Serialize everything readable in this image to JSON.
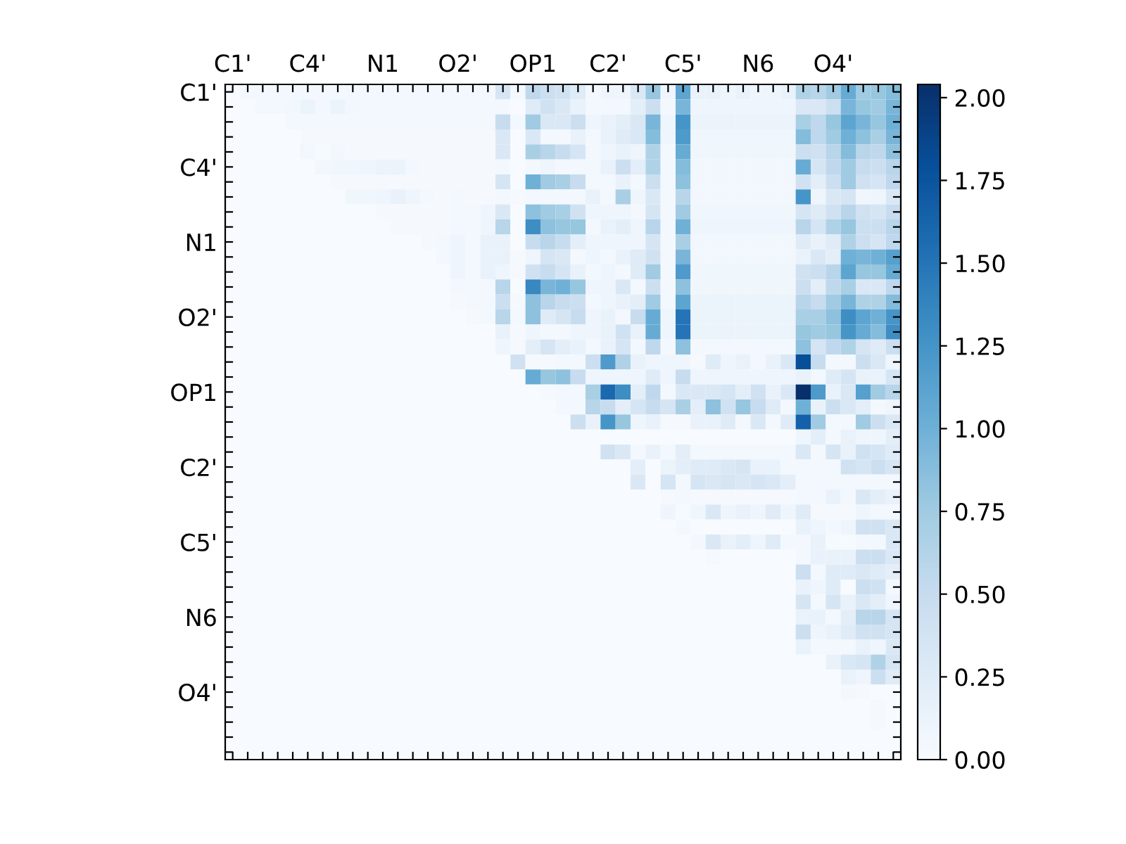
{
  "chart_data": {
    "type": "heatmap",
    "categories": [
      "C1'",
      null,
      null,
      null,
      null,
      "C4'",
      null,
      null,
      null,
      null,
      "N1",
      null,
      null,
      null,
      null,
      "O2'",
      null,
      null,
      null,
      null,
      "OP1",
      null,
      null,
      null,
      null,
      "C2'",
      null,
      null,
      null,
      null,
      "C5'",
      null,
      null,
      null,
      null,
      "N6",
      null,
      null,
      null,
      null,
      "O4'",
      null,
      null,
      null,
      null
    ],
    "y_categories": [
      "C1'",
      null,
      null,
      null,
      null,
      "C4'",
      null,
      null,
      null,
      null,
      "N1",
      null,
      null,
      null,
      null,
      "O2'",
      null,
      null,
      null,
      null,
      "OP1",
      null,
      null,
      null,
      null,
      "C2'",
      null,
      null,
      null,
      null,
      "C5'",
      null,
      null,
      null,
      null,
      "N6",
      null,
      null,
      null,
      null,
      "O4'",
      null,
      null,
      null,
      null
    ],
    "clim": [
      0,
      2.04
    ],
    "cticks": [
      {
        "value": 0,
        "label": "0.00"
      },
      {
        "value": 0.25,
        "label": "0.25"
      },
      {
        "value": 0.5,
        "label": "0.50"
      },
      {
        "value": 0.75,
        "label": "0.75"
      },
      {
        "value": 1.0,
        "label": "1.00"
      },
      {
        "value": 1.25,
        "label": "1.25"
      },
      {
        "value": 1.5,
        "label": "1.50"
      },
      {
        "value": 1.75,
        "label": "1.75"
      },
      {
        "value": 2.0,
        "label": "2.00"
      }
    ],
    "cells": [
      [
        0,
        0.05,
        0.05,
        0.05,
        0.05,
        0.05,
        0.05,
        0.05,
        0.05,
        0.05,
        0.05,
        0.05,
        0.05,
        0.05,
        0.05,
        0.05,
        0.05,
        0.05,
        0.35,
        0.05,
        0.55,
        0.45,
        0.4,
        0.25,
        0.05,
        0.1,
        0.1,
        0.3,
        0.8,
        0.1,
        1.1,
        0.15,
        0.15,
        0.1,
        0.15,
        0.1,
        0.1,
        0.15,
        0.65,
        0.6,
        0.75,
        1.05,
        0.75,
        0.8,
        0.9
      ],
      [
        0,
        0,
        0.05,
        0.05,
        0.07,
        0.12,
        0.05,
        0.12,
        0.07,
        0.05,
        0.05,
        0.05,
        0.05,
        0.05,
        0.05,
        0.05,
        0.05,
        0.05,
        0.05,
        0,
        0.25,
        0.4,
        0.3,
        0.15,
        0.05,
        0.05,
        0.05,
        0.2,
        0.45,
        0.05,
        0.95,
        0.1,
        0.1,
        0.1,
        0.1,
        0.1,
        0.1,
        0.1,
        0.3,
        0.3,
        0.45,
        0.95,
        0.8,
        0.75,
        0.95
      ],
      [
        0,
        0,
        0,
        0,
        0.05,
        0.05,
        0.05,
        0.05,
        0.05,
        0.05,
        0.05,
        0.05,
        0.05,
        0.05,
        0.05,
        0.05,
        0.05,
        0.05,
        0.5,
        0.05,
        0.75,
        0.3,
        0.3,
        0.45,
        0.1,
        0.15,
        0.2,
        0.3,
        0.95,
        0.1,
        1.25,
        0.12,
        0.12,
        0.12,
        0.12,
        0.12,
        0.12,
        0.12,
        0.7,
        0.55,
        0.8,
        1.1,
        0.95,
        0.8,
        1.0
      ],
      [
        0,
        0,
        0,
        0,
        0,
        0.03,
        0.03,
        0.03,
        0.03,
        0.03,
        0.03,
        0.03,
        0.03,
        0.03,
        0.03,
        0.03,
        0.03,
        0.03,
        0.3,
        0,
        0.3,
        0.05,
        0.05,
        0.15,
        0.05,
        0.15,
        0.25,
        0.3,
        0.9,
        0.1,
        1.2,
        0.08,
        0.08,
        0.08,
        0.08,
        0.08,
        0.08,
        0.08,
        0.9,
        0.55,
        0.75,
        1.0,
        0.85,
        0.7,
        0.95
      ],
      [
        0,
        0,
        0,
        0,
        0,
        0.07,
        0.02,
        0.07,
        0.03,
        0.03,
        0.03,
        0.03,
        0.03,
        0.03,
        0.03,
        0.03,
        0.03,
        0.03,
        0.3,
        0,
        0.7,
        0.6,
        0.5,
        0.35,
        0.05,
        0.1,
        0.15,
        0.1,
        0.65,
        0.05,
        1.05,
        0.08,
        0.08,
        0.08,
        0.08,
        0.08,
        0.08,
        0.08,
        0.45,
        0.4,
        0.6,
        0.9,
        0.6,
        0.55,
        0.85
      ],
      [
        0,
        0,
        0,
        0,
        0,
        0,
        0.06,
        0.08,
        0.08,
        0.1,
        0.12,
        0.12,
        0.05,
        0.03,
        0.03,
        0.03,
        0.03,
        0.03,
        0.05,
        0,
        0.05,
        0.1,
        0.05,
        0.05,
        0.05,
        0.15,
        0.45,
        0.2,
        0.65,
        0.05,
        0.9,
        0.07,
        0.07,
        0.07,
        0.07,
        0.07,
        0.07,
        0.07,
        1.05,
        0.35,
        0.55,
        0.75,
        0.5,
        0.45,
        0.6
      ],
      [
        0,
        0,
        0,
        0,
        0,
        0,
        0,
        0.03,
        0.03,
        0.03,
        0.03,
        0.03,
        0.03,
        0.03,
        0.03,
        0.03,
        0.03,
        0.03,
        0.35,
        0,
        1.0,
        0.75,
        0.7,
        0.5,
        0.05,
        0.05,
        0.15,
        0.05,
        0.45,
        0.05,
        0.85,
        0.06,
        0.06,
        0.06,
        0.06,
        0.06,
        0.06,
        0.06,
        0.4,
        0.2,
        0.45,
        0.75,
        0.4,
        0.35,
        0.55
      ],
      [
        0,
        0,
        0,
        0,
        0,
        0,
        0,
        0,
        0.08,
        0.08,
        0.1,
        0.15,
        0.1,
        0.05,
        0.03,
        0.05,
        0.03,
        0.03,
        0.05,
        0.03,
        0.05,
        0.05,
        0.05,
        0.05,
        0.15,
        0.05,
        0.7,
        0.1,
        0.3,
        0.05,
        0.6,
        0.07,
        0.07,
        0.07,
        0.07,
        0.07,
        0.07,
        0.07,
        1.25,
        0.1,
        0.3,
        0.35,
        0.08,
        0.1,
        0.3
      ],
      [
        0,
        0,
        0,
        0,
        0,
        0,
        0,
        0,
        0,
        0,
        0.03,
        0.03,
        0.03,
        0.03,
        0.03,
        0.05,
        0.05,
        0.1,
        0.3,
        0,
        0.85,
        0.75,
        0.7,
        0.4,
        0.1,
        0.1,
        0.1,
        0.05,
        0.35,
        0.05,
        0.75,
        0.08,
        0.08,
        0.08,
        0.08,
        0.08,
        0.08,
        0.08,
        0.35,
        0.25,
        0.4,
        0.6,
        0.4,
        0.35,
        0.5
      ],
      [
        0,
        0,
        0,
        0,
        0,
        0,
        0,
        0,
        0,
        0,
        0,
        0.03,
        0.03,
        0.03,
        0.03,
        0.05,
        0.05,
        0.1,
        0.6,
        0,
        1.3,
        0.85,
        0.8,
        0.8,
        0.05,
        0.15,
        0.2,
        0.1,
        0.6,
        0.05,
        1.0,
        0.1,
        0.1,
        0.1,
        0.1,
        0.1,
        0.1,
        0.1,
        0.6,
        0.35,
        0.65,
        0.8,
        0.45,
        0.45,
        0.6
      ],
      [
        0,
        0,
        0,
        0,
        0,
        0,
        0,
        0,
        0,
        0,
        0,
        0,
        0,
        0.03,
        0.05,
        0.1,
        0.05,
        0.15,
        0.15,
        0,
        0.5,
        0.6,
        0.5,
        0.2,
        0.1,
        0.1,
        0.1,
        0.1,
        0.35,
        0.05,
        0.7,
        0.07,
        0.07,
        0.07,
        0.07,
        0.07,
        0.07,
        0.07,
        0.25,
        0.15,
        0.25,
        0.65,
        0.45,
        0.35,
        0.55
      ],
      [
        0,
        0,
        0,
        0,
        0,
        0,
        0,
        0,
        0,
        0,
        0,
        0,
        0,
        0,
        0.05,
        0.1,
        0.05,
        0.15,
        0.15,
        0.03,
        0.1,
        0.35,
        0.3,
        0.05,
        0.1,
        0.05,
        0.15,
        0.25,
        0.4,
        0.05,
        0.95,
        0.07,
        0.07,
        0.07,
        0.07,
        0.07,
        0.07,
        0.07,
        0.15,
        0.3,
        0.2,
        1.0,
        0.95,
        1.0,
        1.15
      ],
      [
        0,
        0,
        0,
        0,
        0,
        0,
        0,
        0,
        0,
        0,
        0,
        0,
        0,
        0,
        0,
        0.1,
        0.05,
        0.15,
        0.1,
        0.03,
        0.4,
        0.5,
        0.35,
        0.15,
        0.05,
        0.1,
        0.05,
        0.25,
        0.75,
        0.05,
        1.2,
        0.08,
        0.08,
        0.08,
        0.08,
        0.08,
        0.08,
        0.08,
        0.4,
        0.45,
        0.6,
        1.1,
        0.8,
        0.8,
        1.05
      ],
      [
        0,
        0,
        0,
        0,
        0,
        0,
        0,
        0,
        0,
        0,
        0,
        0,
        0,
        0,
        0,
        0.05,
        0.05,
        0.05,
        0.6,
        0,
        1.35,
        0.95,
        1.0,
        0.8,
        0.1,
        0.1,
        0.3,
        0.05,
        0.45,
        0.05,
        0.85,
        0.08,
        0.08,
        0.08,
        0.08,
        0.08,
        0.08,
        0.08,
        0.45,
        0.2,
        0.55,
        0.7,
        0.3,
        0.3,
        0.55
      ],
      [
        0,
        0,
        0,
        0,
        0,
        0,
        0,
        0,
        0,
        0,
        0,
        0,
        0,
        0,
        0,
        0.03,
        0.05,
        0.05,
        0.45,
        0.03,
        0.85,
        0.6,
        0.5,
        0.45,
        0.05,
        0.1,
        0.15,
        0.2,
        0.75,
        0.05,
        1.1,
        0.12,
        0.12,
        0.12,
        0.12,
        0.12,
        0.12,
        0.12,
        0.6,
        0.5,
        0.75,
        0.95,
        0.65,
        0.65,
        0.9
      ],
      [
        0,
        0,
        0,
        0,
        0,
        0,
        0,
        0,
        0,
        0,
        0,
        0,
        0,
        0,
        0,
        0,
        0.03,
        0.05,
        0.6,
        0.05,
        0.85,
        0.25,
        0.35,
        0.5,
        0.1,
        0.15,
        0.05,
        0.5,
        1.05,
        0.1,
        1.5,
        0.12,
        0.12,
        0.12,
        0.12,
        0.12,
        0.12,
        0.12,
        0.7,
        0.7,
        0.85,
        1.3,
        1.1,
        1.0,
        1.25
      ],
      [
        0,
        0,
        0,
        0,
        0,
        0,
        0,
        0,
        0,
        0,
        0,
        0,
        0,
        0,
        0,
        0,
        0,
        0,
        0.15,
        0.03,
        0.1,
        0.05,
        0.05,
        0.1,
        0.1,
        0.15,
        0.4,
        0.15,
        1.05,
        0.1,
        1.5,
        0.12,
        0.12,
        0.12,
        0.12,
        0.12,
        0.12,
        0.12,
        0.8,
        0.75,
        0.8,
        1.25,
        1.05,
        0.9,
        1.3
      ],
      [
        0,
        0,
        0,
        0,
        0,
        0,
        0,
        0,
        0,
        0,
        0,
        0,
        0,
        0,
        0,
        0,
        0,
        0,
        0.1,
        0.03,
        0.2,
        0.35,
        0.2,
        0.15,
        0.05,
        0.15,
        0.35,
        0.05,
        0.55,
        0.05,
        0.85,
        0.05,
        0.05,
        0.05,
        0.05,
        0.05,
        0.05,
        0.05,
        0.85,
        0.35,
        0.55,
        0.65,
        0.35,
        0.25,
        0.45
      ],
      [
        0,
        0,
        0,
        0,
        0,
        0,
        0,
        0,
        0,
        0,
        0,
        0,
        0,
        0,
        0,
        0,
        0,
        0,
        0,
        0.4,
        0.03,
        0.03,
        0.05,
        0.05,
        0.45,
        1.2,
        0.65,
        0.15,
        0.1,
        0.1,
        0.1,
        0.03,
        0.25,
        0.1,
        0.15,
        0.05,
        0.15,
        0.3,
        1.8,
        0.5,
        0.05,
        0.05,
        0.45,
        0.3,
        0.1
      ],
      [
        0,
        0,
        0,
        0,
        0,
        0,
        0,
        0,
        0,
        0,
        0,
        0,
        0,
        0,
        0,
        0,
        0,
        0,
        0,
        0,
        1.05,
        0.8,
        0.85,
        0.5,
        0.1,
        0.1,
        0.1,
        0.1,
        0.25,
        0.1,
        0.5,
        0.1,
        0.1,
        0.1,
        0.1,
        0.1,
        0.1,
        0.1,
        0.15,
        0.05,
        0.25,
        0.35,
        0.15,
        0.15,
        0.35
      ],
      [
        0,
        0,
        0,
        0,
        0,
        0,
        0,
        0,
        0,
        0,
        0,
        0,
        0,
        0,
        0,
        0,
        0,
        0,
        0,
        0,
        0,
        0.03,
        0.05,
        0.05,
        0.7,
        1.6,
        1.3,
        0.2,
        0.55,
        0.05,
        0.3,
        0.3,
        0.3,
        0.35,
        0.2,
        0.4,
        0.15,
        0.3,
        2.04,
        1.2,
        0.15,
        0.3,
        1.15,
        0.75,
        0.6
      ],
      [
        0,
        0,
        0,
        0,
        0,
        0,
        0,
        0,
        0,
        0,
        0,
        0,
        0,
        0,
        0,
        0,
        0,
        0,
        0,
        0,
        0,
        0,
        0.05,
        0.05,
        0.6,
        0.5,
        0.2,
        0.35,
        0.5,
        0.35,
        0.7,
        0.2,
        0.85,
        0.4,
        0.8,
        0.5,
        0.25,
        0.05,
        1.0,
        0.15,
        0.45,
        0.3,
        0.2,
        0.05,
        0.1
      ],
      [
        0,
        0,
        0,
        0,
        0,
        0,
        0,
        0,
        0,
        0,
        0,
        0,
        0,
        0,
        0,
        0,
        0,
        0,
        0,
        0,
        0,
        0,
        0,
        0.45,
        0.15,
        1.25,
        0.8,
        0.1,
        0.15,
        0.03,
        0.03,
        0.15,
        0.15,
        0.25,
        0.05,
        0.3,
        0.05,
        0.25,
        1.65,
        0.75,
        0.05,
        0.05,
        0.75,
        0.45,
        0.3
      ],
      [
        0,
        0,
        0,
        0,
        0,
        0,
        0,
        0,
        0,
        0,
        0,
        0,
        0,
        0,
        0,
        0,
        0,
        0,
        0,
        0,
        0,
        0,
        0,
        0,
        0,
        0,
        0,
        0,
        0,
        0,
        0,
        0,
        0,
        0,
        0,
        0,
        0,
        0,
        0.1,
        0.2,
        0.05,
        0.15,
        0.1,
        0.1,
        0.2
      ],
      [
        0,
        0,
        0,
        0,
        0,
        0,
        0,
        0,
        0,
        0,
        0,
        0,
        0,
        0,
        0,
        0,
        0,
        0,
        0,
        0,
        0,
        0,
        0,
        0,
        0,
        0.4,
        0.3,
        0.05,
        0.15,
        0.05,
        0.2,
        0.05,
        0.05,
        0.05,
        0.05,
        0.05,
        0.05,
        0.05,
        0.3,
        0.05,
        0.35,
        0.15,
        0.4,
        0.35,
        0.25
      ],
      [
        0,
        0,
        0,
        0,
        0,
        0,
        0,
        0,
        0,
        0,
        0,
        0,
        0,
        0,
        0,
        0,
        0,
        0,
        0,
        0,
        0,
        0,
        0,
        0,
        0,
        0,
        0,
        0.2,
        0,
        0.12,
        0.2,
        0.25,
        0.25,
        0.3,
        0.35,
        0.15,
        0.15,
        0.05,
        0.05,
        0.05,
        0.05,
        0.4,
        0.35,
        0.45,
        0.35
      ],
      [
        0,
        0,
        0,
        0,
        0,
        0,
        0,
        0,
        0,
        0,
        0,
        0,
        0,
        0,
        0,
        0,
        0,
        0,
        0,
        0,
        0,
        0,
        0,
        0,
        0,
        0,
        0,
        0.3,
        0,
        0.35,
        0.05,
        0.35,
        0.3,
        0.35,
        0.3,
        0.35,
        0.3,
        0.2,
        0.05,
        0.05,
        0.05,
        0.05,
        0.05,
        0.05,
        0.05
      ],
      [
        0,
        0,
        0,
        0,
        0,
        0,
        0,
        0,
        0,
        0,
        0,
        0,
        0,
        0,
        0,
        0,
        0,
        0,
        0,
        0,
        0,
        0,
        0,
        0,
        0,
        0,
        0,
        0,
        0,
        0.03,
        0.05,
        0.03,
        0.03,
        0.03,
        0.03,
        0.03,
        0.03,
        0.03,
        0.05,
        0.05,
        0.15,
        0.05,
        0.3,
        0.2,
        0.15
      ],
      [
        0,
        0,
        0,
        0,
        0,
        0,
        0,
        0,
        0,
        0,
        0,
        0,
        0,
        0,
        0,
        0,
        0,
        0,
        0,
        0,
        0,
        0,
        0,
        0,
        0,
        0,
        0,
        0,
        0,
        0.1,
        0.02,
        0.08,
        0.3,
        0.1,
        0.15,
        0.1,
        0.25,
        0.1,
        0.25,
        0.03,
        0.03,
        0.03,
        0.1,
        0.05,
        0.05
      ],
      [
        0,
        0,
        0,
        0,
        0,
        0,
        0,
        0,
        0,
        0,
        0,
        0,
        0,
        0,
        0,
        0,
        0,
        0,
        0,
        0,
        0,
        0,
        0,
        0,
        0,
        0,
        0,
        0,
        0,
        0,
        0.05,
        0,
        0,
        0,
        0,
        0,
        0,
        0,
        0.15,
        0.1,
        0.05,
        0.1,
        0.4,
        0.4,
        0.3
      ],
      [
        0,
        0,
        0,
        0,
        0,
        0,
        0,
        0,
        0,
        0,
        0,
        0,
        0,
        0,
        0,
        0,
        0,
        0,
        0,
        0,
        0,
        0,
        0,
        0,
        0,
        0,
        0,
        0,
        0,
        0,
        0,
        0.05,
        0.3,
        0.15,
        0.2,
        0.1,
        0.25,
        0.05,
        0.05,
        0.15,
        0.02,
        0.02,
        0.05,
        0.05,
        0.3
      ],
      [
        0,
        0,
        0,
        0,
        0,
        0,
        0,
        0,
        0,
        0,
        0,
        0,
        0,
        0,
        0,
        0,
        0,
        0,
        0,
        0,
        0,
        0,
        0,
        0,
        0,
        0,
        0,
        0,
        0,
        0,
        0,
        0,
        0.03,
        0,
        0,
        0,
        0,
        0,
        0.05,
        0.15,
        0.15,
        0.15,
        0.45,
        0.45,
        0.3
      ],
      [
        0,
        0,
        0,
        0,
        0,
        0,
        0,
        0,
        0,
        0,
        0,
        0,
        0,
        0,
        0,
        0,
        0,
        0,
        0,
        0,
        0,
        0,
        0,
        0,
        0,
        0,
        0,
        0,
        0,
        0,
        0,
        0,
        0,
        0,
        0,
        0,
        0,
        0,
        0.45,
        0.05,
        0.25,
        0.25,
        0.3,
        0.25,
        0.2
      ],
      [
        0,
        0,
        0,
        0,
        0,
        0,
        0,
        0,
        0,
        0,
        0,
        0,
        0,
        0,
        0,
        0,
        0,
        0,
        0,
        0,
        0,
        0,
        0,
        0,
        0,
        0,
        0,
        0,
        0,
        0,
        0,
        0,
        0,
        0,
        0,
        0,
        0,
        0,
        0.15,
        0.1,
        0.25,
        0,
        0.45,
        0.4,
        0.05
      ],
      [
        0,
        0,
        0,
        0,
        0,
        0,
        0,
        0,
        0,
        0,
        0,
        0,
        0,
        0,
        0,
        0,
        0,
        0,
        0,
        0,
        0,
        0,
        0,
        0,
        0,
        0,
        0,
        0,
        0,
        0,
        0,
        0,
        0,
        0,
        0,
        0,
        0,
        0,
        0.35,
        0.05,
        0.35,
        0.15,
        0.3,
        0.2,
        0.1
      ],
      [
        0,
        0,
        0,
        0,
        0,
        0,
        0,
        0,
        0,
        0,
        0,
        0,
        0,
        0,
        0,
        0,
        0,
        0,
        0,
        0,
        0,
        0,
        0,
        0,
        0,
        0,
        0,
        0,
        0,
        0,
        0,
        0,
        0,
        0,
        0,
        0,
        0,
        0,
        0.15,
        0.15,
        0.05,
        0.2,
        0.6,
        0.6,
        0.35
      ],
      [
        0,
        0,
        0,
        0,
        0,
        0,
        0,
        0,
        0,
        0,
        0,
        0,
        0,
        0,
        0,
        0,
        0,
        0,
        0,
        0,
        0,
        0,
        0,
        0,
        0,
        0,
        0,
        0,
        0,
        0,
        0,
        0,
        0,
        0,
        0,
        0,
        0,
        0,
        0.45,
        0.1,
        0.15,
        0.25,
        0.4,
        0.4,
        0.35
      ],
      [
        0,
        0,
        0,
        0,
        0,
        0,
        0,
        0,
        0,
        0,
        0,
        0,
        0,
        0,
        0,
        0,
        0,
        0,
        0,
        0,
        0,
        0,
        0,
        0,
        0,
        0,
        0,
        0,
        0,
        0,
        0,
        0,
        0,
        0,
        0,
        0,
        0,
        0,
        0.15,
        0.05,
        0.05,
        0.05,
        0.15,
        0.1,
        0.3
      ],
      [
        0,
        0,
        0,
        0,
        0,
        0,
        0,
        0,
        0,
        0,
        0,
        0,
        0,
        0,
        0,
        0,
        0,
        0,
        0,
        0,
        0,
        0,
        0,
        0,
        0,
        0,
        0,
        0,
        0,
        0,
        0,
        0,
        0,
        0,
        0,
        0,
        0,
        0,
        0,
        0,
        0.15,
        0.3,
        0.35,
        0.65,
        0.35
      ],
      [
        0,
        0,
        0,
        0,
        0,
        0,
        0,
        0,
        0,
        0,
        0,
        0,
        0,
        0,
        0,
        0,
        0,
        0,
        0,
        0,
        0,
        0,
        0,
        0,
        0,
        0,
        0,
        0,
        0,
        0,
        0,
        0,
        0,
        0,
        0,
        0,
        0,
        0,
        0,
        0,
        0,
        0.15,
        0.1,
        0.45,
        0.25
      ],
      [
        0,
        0,
        0,
        0,
        0,
        0,
        0,
        0,
        0,
        0,
        0,
        0,
        0,
        0,
        0,
        0,
        0,
        0,
        0,
        0,
        0,
        0,
        0,
        0,
        0,
        0,
        0,
        0,
        0,
        0,
        0,
        0,
        0,
        0,
        0,
        0,
        0,
        0,
        0,
        0,
        0,
        0.05,
        0.03,
        0,
        0
      ],
      [
        0,
        0,
        0,
        0,
        0,
        0,
        0,
        0,
        0,
        0,
        0,
        0,
        0,
        0,
        0,
        0,
        0,
        0,
        0,
        0,
        0,
        0,
        0,
        0,
        0,
        0,
        0,
        0,
        0,
        0,
        0,
        0,
        0,
        0,
        0,
        0,
        0,
        0,
        0,
        0,
        0,
        0,
        0,
        0.03,
        0
      ],
      [
        0,
        0,
        0,
        0,
        0,
        0,
        0,
        0,
        0,
        0,
        0,
        0,
        0,
        0,
        0,
        0,
        0,
        0,
        0,
        0,
        0,
        0,
        0,
        0,
        0,
        0,
        0,
        0,
        0,
        0,
        0,
        0,
        0,
        0,
        0,
        0,
        0,
        0,
        0,
        0,
        0,
        0,
        0,
        0.03,
        0
      ],
      [
        0,
        0,
        0,
        0,
        0,
        0,
        0,
        0,
        0,
        0,
        0,
        0,
        0,
        0,
        0,
        0,
        0,
        0,
        0,
        0,
        0,
        0,
        0,
        0,
        0,
        0,
        0,
        0,
        0,
        0,
        0,
        0,
        0,
        0,
        0,
        0,
        0,
        0,
        0,
        0,
        0,
        0,
        0,
        0,
        0
      ],
      [
        0,
        0,
        0,
        0,
        0,
        0,
        0,
        0,
        0,
        0,
        0,
        0,
        0,
        0,
        0,
        0,
        0,
        0,
        0,
        0,
        0,
        0,
        0,
        0,
        0,
        0,
        0,
        0,
        0,
        0,
        0,
        0,
        0,
        0,
        0,
        0,
        0,
        0,
        0,
        0,
        0,
        0,
        0,
        0,
        0
      ]
    ]
  }
}
